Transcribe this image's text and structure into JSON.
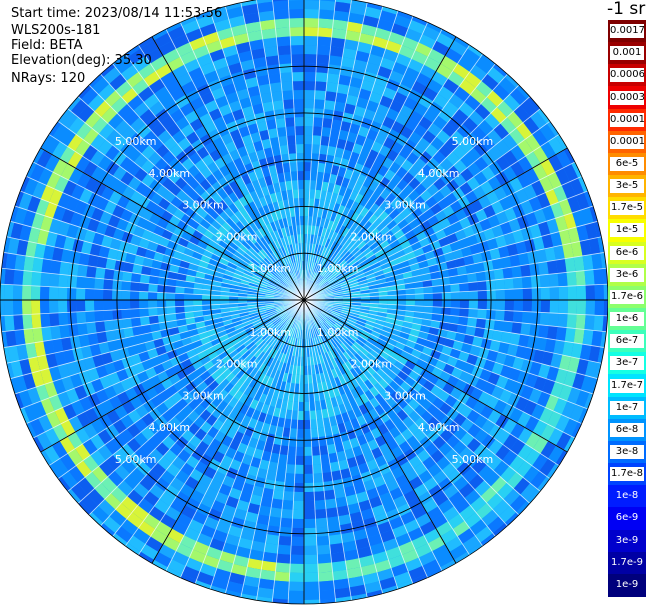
{
  "header": {
    "start_time": "Start time: 2023/08/14 11:53:56",
    "device": "WLS200s-181",
    "field": "Field: BETA",
    "elevation": "Elevation(deg): 35.30",
    "nrays": "NRays: 120",
    "units": "-1 sr"
  },
  "chart_data": {
    "type": "heatmap",
    "projection": "polar PPI",
    "field": "BETA",
    "elevation_deg": 35.3,
    "n_rays": 120,
    "range_rings_km": [
      1,
      2,
      3,
      4,
      5
    ],
    "ring_labels": [
      "1.00km",
      "2.00km",
      "3.00km",
      "4.00km",
      "5.00km"
    ],
    "max_range_km": 6.5,
    "notable_feature": "bright ring near 5.8 km",
    "colorbar": {
      "scale": "log",
      "ticks": [
        {
          "label": "0.0017",
          "color": "#7f0000"
        },
        {
          "label": "0.001",
          "color": "#990000"
        },
        {
          "label": "0.0006",
          "color": "#c80000"
        },
        {
          "label": "0.0003",
          "color": "#ee0000"
        },
        {
          "label": "0.00017",
          "color": "#ff2a00"
        },
        {
          "label": "0.0001",
          "color": "#ff6400"
        },
        {
          "label": "6e-5",
          "color": "#ff8c00"
        },
        {
          "label": "3e-5",
          "color": "#ffb400"
        },
        {
          "label": "1.7e-5",
          "color": "#ffdc00"
        },
        {
          "label": "1e-5",
          "color": "#f8ff00"
        },
        {
          "label": "6e-6",
          "color": "#d8ff20"
        },
        {
          "label": "3e-6",
          "color": "#b0ff48"
        },
        {
          "label": "1.7e-6",
          "color": "#8cff6c"
        },
        {
          "label": "1e-6",
          "color": "#64ff94"
        },
        {
          "label": "6e-7",
          "color": "#3cffbc"
        },
        {
          "label": "3e-7",
          "color": "#14ffe4"
        },
        {
          "label": "1.7e-7",
          "color": "#00e4ff"
        },
        {
          "label": "1e-7",
          "color": "#00bcff"
        },
        {
          "label": "6e-8",
          "color": "#0094ff"
        },
        {
          "label": "3e-8",
          "color": "#006cff"
        },
        {
          "label": "1.7e-8",
          "color": "#0044ff"
        },
        {
          "label": "1e-8",
          "color": "#001cff"
        },
        {
          "label": "6e-9",
          "color": "#0000f4"
        },
        {
          "label": "3e-9",
          "color": "#0000cc"
        },
        {
          "label": "1.7e-9",
          "color": "#0000a4"
        },
        {
          "label": "1e-9",
          "color": "#00007c"
        }
      ]
    }
  }
}
